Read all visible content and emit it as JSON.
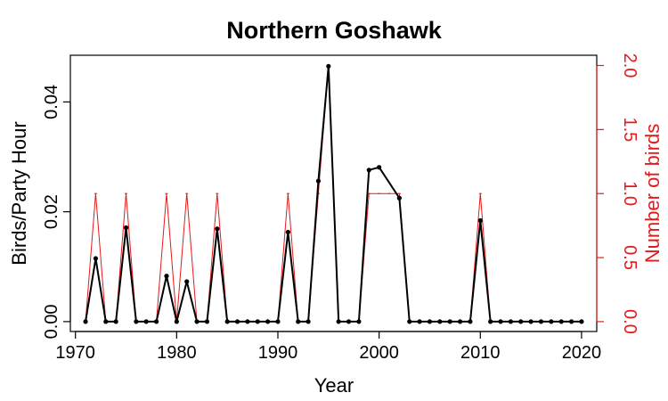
{
  "chart_data": {
    "type": "line",
    "title": "Northern Goshawk",
    "xlabel": "Year",
    "ylabel": "Birds/Party Hour",
    "ylabel_right": "Number of birds",
    "xlim": [
      1969.5,
      2021.5
    ],
    "ylim": [
      -0.0018,
      0.0485
    ],
    "ylim_right": [
      -0.077,
      2.08
    ],
    "xticks": [
      1970,
      1980,
      1990,
      2000,
      2010,
      2020
    ],
    "yticks": [
      0.0,
      0.02,
      0.04
    ],
    "ytick_labels": [
      "0.00",
      "0.02",
      "0.04"
    ],
    "yticks_right": [
      0.0,
      0.5,
      1.0,
      1.5,
      2.0
    ],
    "ytick_labels_right": [
      "0.0",
      "0.5",
      "1.0",
      "1.5",
      "2.0"
    ],
    "grid": false,
    "colors": {
      "primary": "#000000",
      "secondary": "#e41a1c"
    },
    "series": [
      {
        "axis": "left",
        "x": [
          1971,
          1972,
          1973,
          1974,
          1975,
          1976,
          1977,
          1978,
          1979,
          1980,
          1981,
          1982,
          1983,
          1984,
          1985,
          1986,
          1987,
          1988,
          1989,
          1990,
          1991,
          1992,
          1993,
          1994,
          1995,
          1996,
          1997,
          1998,
          1999,
          2000,
          2002,
          2003,
          2004,
          2005,
          2006,
          2007,
          2008,
          2009,
          2010,
          2011,
          2012,
          2013,
          2014,
          2015,
          2016,
          2017,
          2018,
          2019,
          2020
        ],
        "values": [
          0,
          0.0115,
          0,
          0,
          0.0171,
          0,
          0,
          0,
          0.0083,
          0,
          0.0073,
          0,
          0,
          0.0169,
          0,
          0,
          0,
          0,
          0,
          0,
          0.0163,
          0,
          0,
          0.0256,
          0.0465,
          0,
          0,
          0,
          0.0276,
          0.0281,
          0.0225,
          0,
          0,
          0,
          0,
          0,
          0,
          0,
          0.0184,
          0,
          0,
          0,
          0,
          0,
          0,
          0,
          0,
          0,
          0
        ]
      },
      {
        "axis": "right",
        "x": [
          1971,
          1972,
          1973,
          1974,
          1975,
          1976,
          1977,
          1978,
          1979,
          1980,
          1981,
          1982,
          1983,
          1984,
          1985,
          1986,
          1987,
          1988,
          1989,
          1990,
          1991,
          1992,
          1993,
          1994,
          1995,
          1996,
          1997,
          1998,
          1999,
          2000,
          2001,
          2002,
          2003,
          2004,
          2005,
          2006,
          2007,
          2008,
          2009,
          2010,
          2011,
          2012,
          2013,
          2014,
          2015,
          2016,
          2017,
          2018,
          2019,
          2020
        ],
        "values": [
          0,
          1,
          0,
          0,
          1,
          0,
          0,
          0,
          1,
          0,
          1,
          0,
          0,
          1,
          0,
          0,
          0,
          0,
          0,
          0,
          1,
          0,
          0,
          1,
          2,
          0,
          0,
          0,
          1,
          1,
          1,
          1,
          0,
          0,
          0,
          0,
          0,
          0,
          0,
          1,
          0,
          0,
          0,
          0,
          0,
          0,
          0,
          0,
          0,
          0
        ]
      }
    ]
  }
}
